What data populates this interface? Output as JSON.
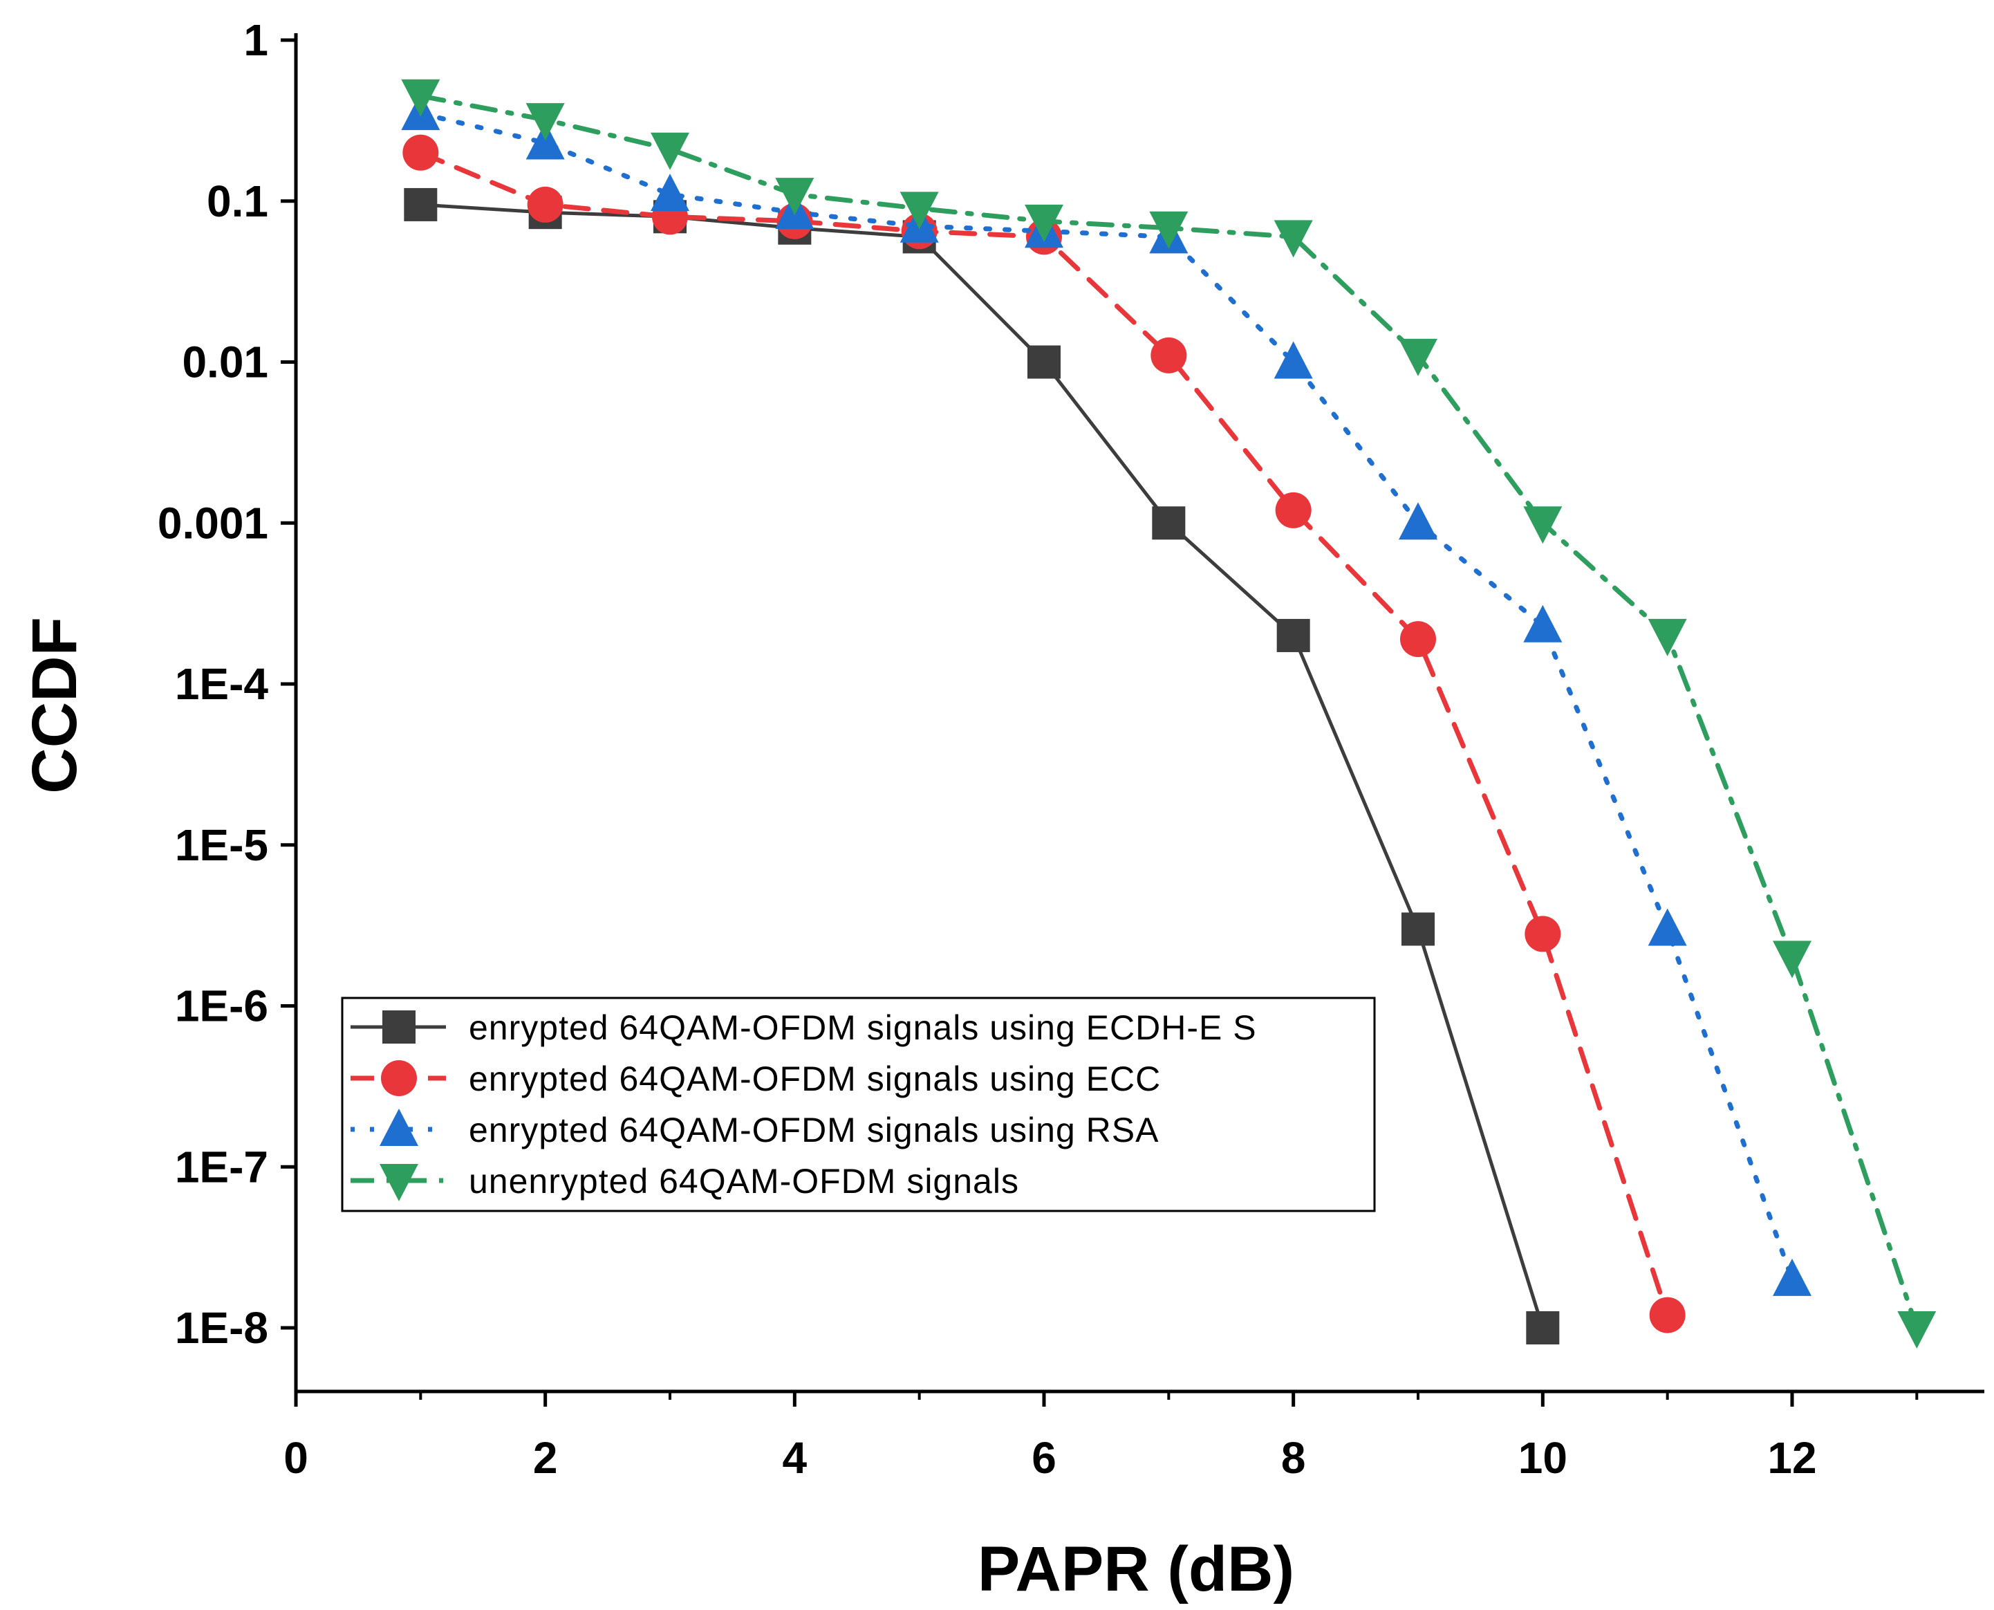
{
  "chart_data": {
    "type": "line",
    "title": "",
    "xlabel": "PAPR (dB)",
    "ylabel": "CCDF",
    "xlim": [
      0,
      13.5
    ],
    "ylim": [
      1e-08,
      1
    ],
    "yscale": "log",
    "xticks": [
      0,
      2,
      4,
      6,
      8,
      10,
      12
    ],
    "xtick_labels": [
      "0",
      "2",
      "4",
      "6",
      "8",
      "10",
      "12"
    ],
    "yticks": [
      1,
      0.1,
      0.01,
      0.001,
      0.0001,
      1e-05,
      1e-06,
      1e-07,
      1e-08
    ],
    "ytick_labels": [
      "1",
      "0.1",
      "0.01",
      "0.001",
      "1E-4",
      "1E-5",
      "1E-6",
      "1E-7",
      "1E-8"
    ],
    "legend_position": "lower-left",
    "series": [
      {
        "name": "enrypted 64QAM-OFDM signals using ECDH-E S",
        "color": "#3d3d3d",
        "marker": "square",
        "line_style": "solid",
        "x": [
          1,
          2,
          3,
          4,
          5,
          6,
          7,
          8,
          9,
          10
        ],
        "y": [
          0.095,
          0.085,
          0.08,
          0.068,
          0.06,
          0.01,
          0.001,
          0.0002,
          3e-06,
          1e-08
        ]
      },
      {
        "name": "enrypted 64QAM-OFDM signals using ECC",
        "color": "#e8363a",
        "marker": "circle",
        "line_style": "dashed",
        "x": [
          1,
          2,
          3,
          4,
          5,
          6,
          7,
          8,
          9,
          10,
          11
        ],
        "y": [
          0.2,
          0.095,
          0.08,
          0.075,
          0.065,
          0.06,
          0.011,
          0.0012,
          0.00019,
          2.8e-06,
          1.2e-08
        ]
      },
      {
        "name": "enrypted 64QAM-OFDM signals using RSA",
        "color": "#1f6fd1",
        "marker": "triangle-up",
        "line_style": "dotted",
        "x": [
          1,
          2,
          3,
          4,
          5,
          6,
          7,
          8,
          9,
          10,
          11,
          12
        ],
        "y": [
          0.35,
          0.23,
          0.11,
          0.085,
          0.07,
          0.065,
          0.06,
          0.01,
          0.001,
          0.00023,
          3e-06,
          2e-08
        ]
      },
      {
        "name": "unenrypted 64QAM-OFDM signals",
        "color": "#2e9e5e",
        "marker": "triangle-down",
        "line_style": "dashdot",
        "x": [
          1,
          2,
          3,
          4,
          5,
          6,
          7,
          8,
          9,
          10,
          11,
          12,
          13
        ],
        "y": [
          0.45,
          0.32,
          0.21,
          0.11,
          0.09,
          0.075,
          0.068,
          0.06,
          0.011,
          0.001,
          0.0002,
          2e-06,
          1e-08
        ]
      }
    ]
  }
}
